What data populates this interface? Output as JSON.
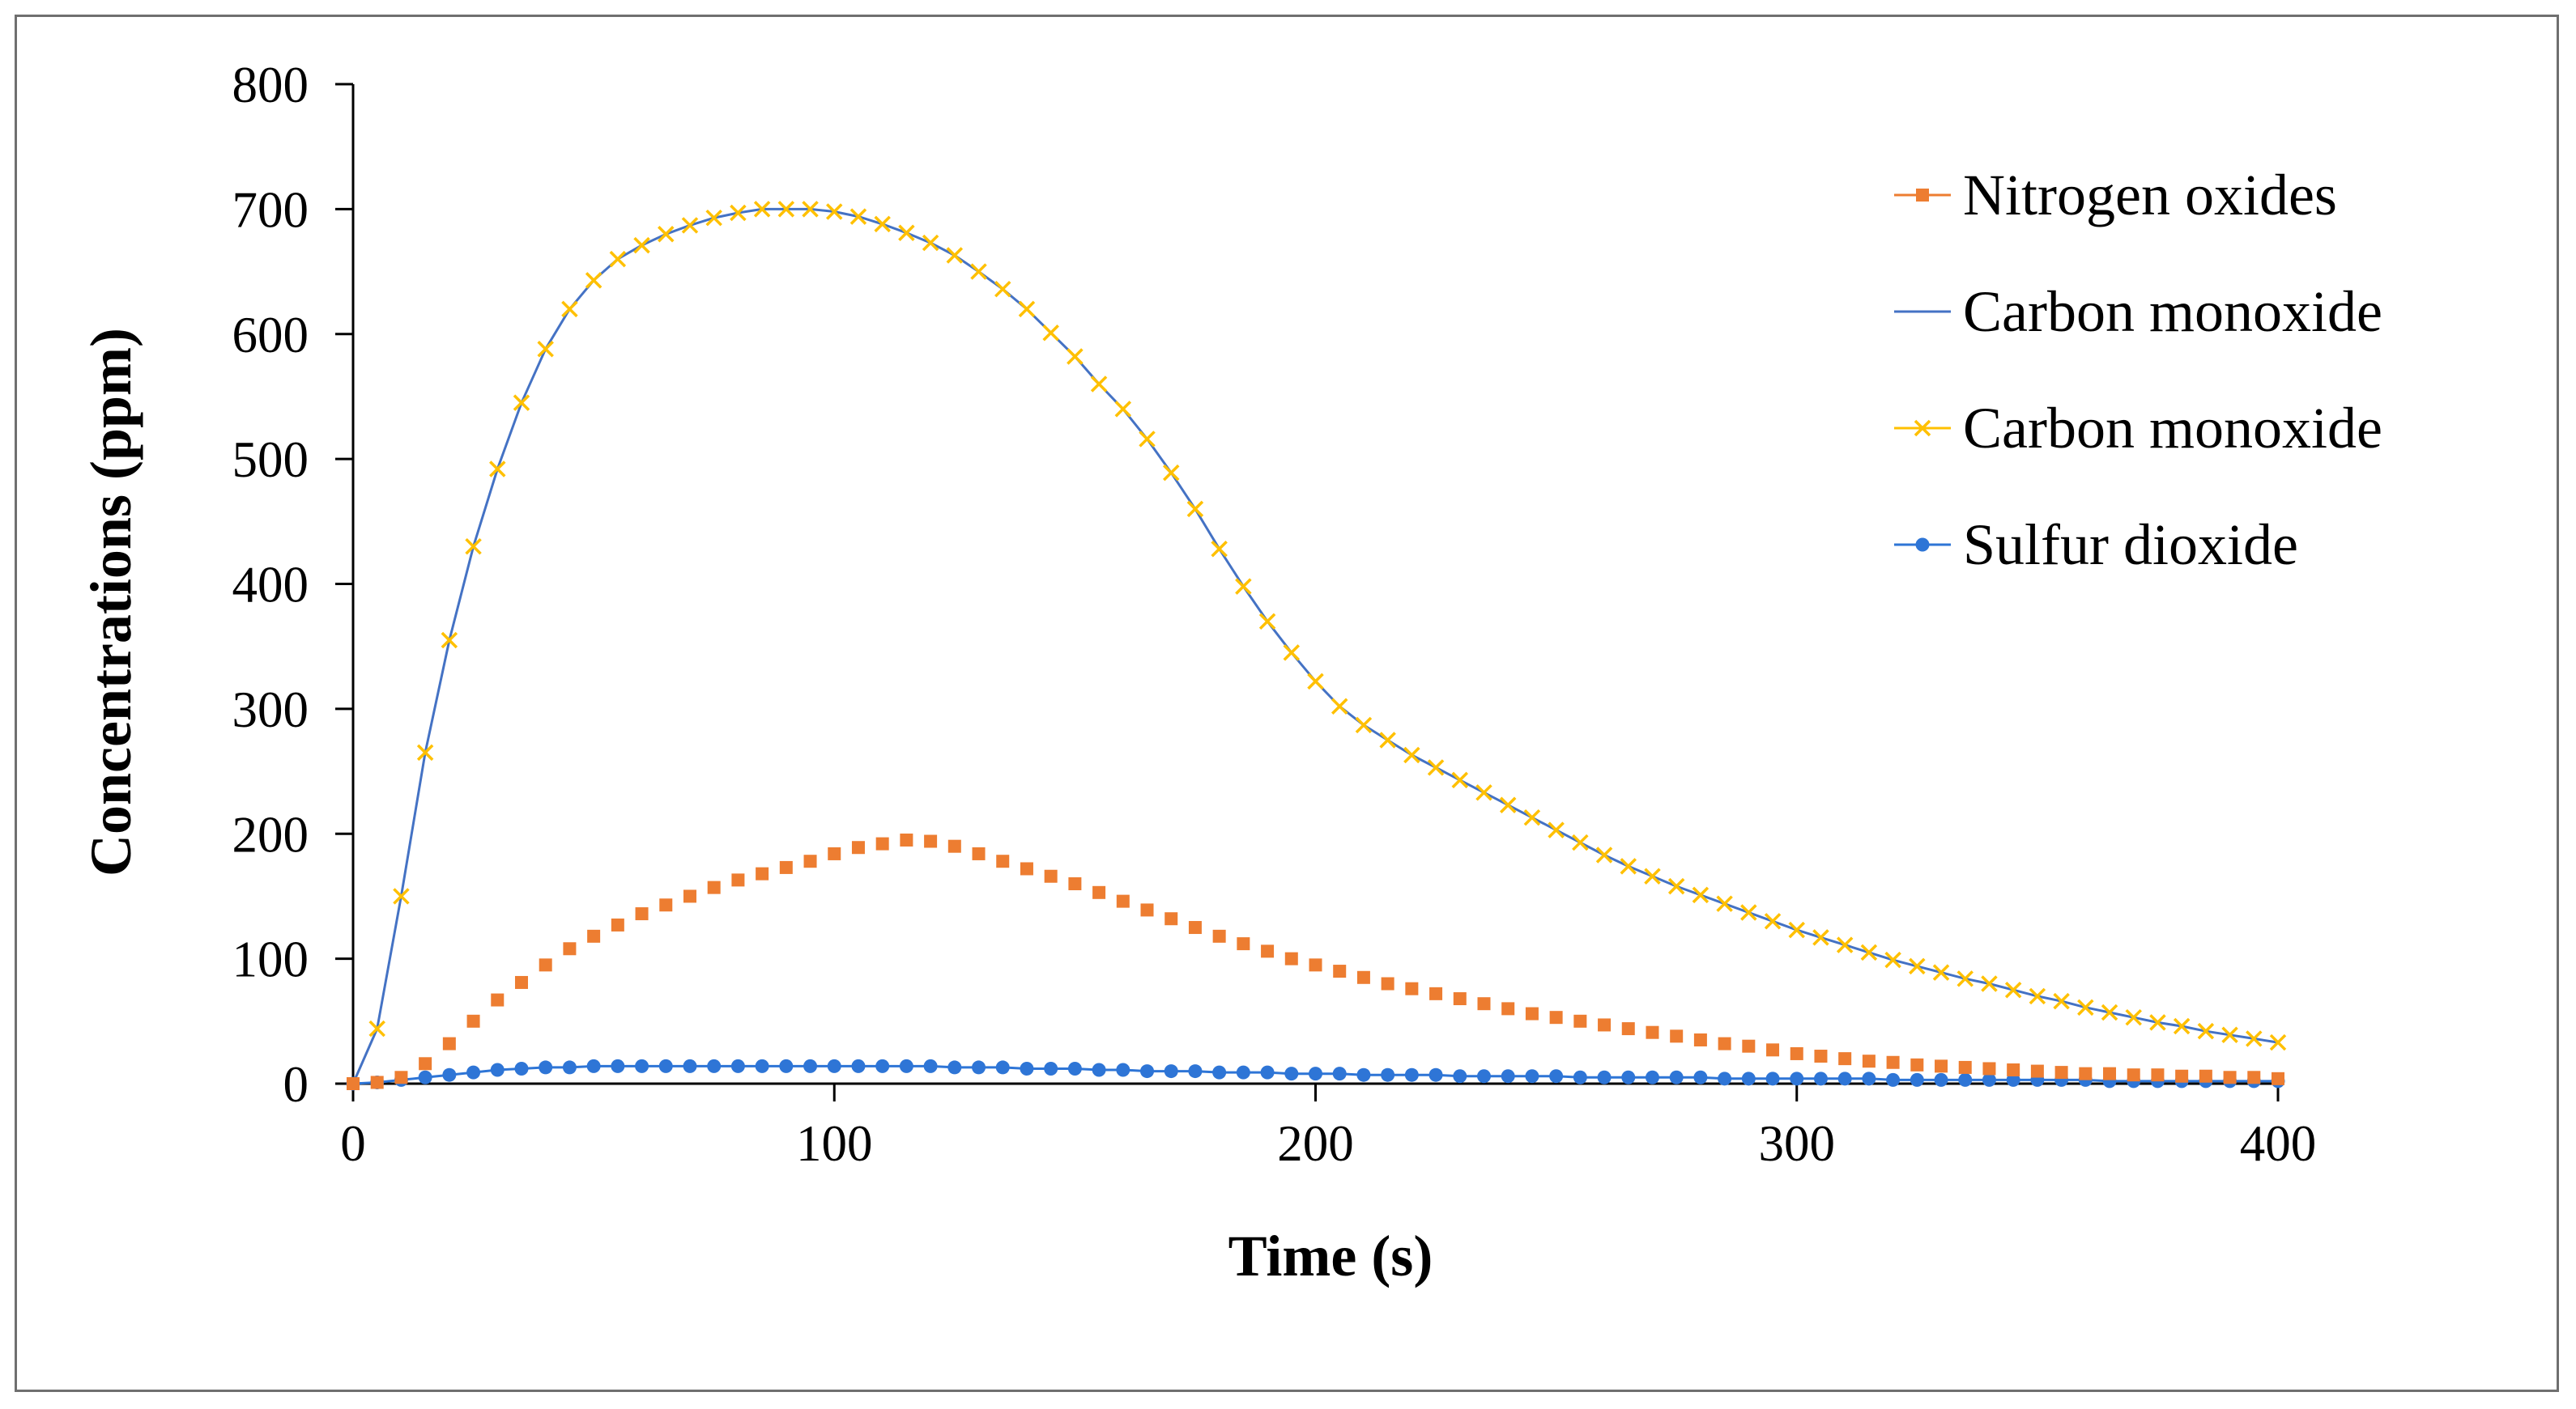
{
  "chart_data": {
    "type": "line",
    "title": "",
    "xlabel": "Time (s)",
    "ylabel": "Concentrations (ppm)",
    "xlim": [
      0,
      400
    ],
    "ylim": [
      0,
      800
    ],
    "xticks": [
      0,
      100,
      200,
      300,
      400
    ],
    "yticks": [
      0,
      100,
      200,
      300,
      400,
      500,
      600,
      700,
      800
    ],
    "grid": false,
    "legend_position": "top-right",
    "series": [
      {
        "name": "Nitrogen oxides",
        "color": "#ED7D31",
        "marker": "square",
        "line": false,
        "x": [
          0,
          5,
          10,
          15,
          20,
          25,
          30,
          35,
          40,
          45,
          50,
          55,
          60,
          65,
          70,
          75,
          80,
          85,
          90,
          95,
          100,
          105,
          110,
          115,
          120,
          125,
          130,
          135,
          140,
          145,
          150,
          155,
          160,
          165,
          170,
          175,
          180,
          185,
          190,
          195,
          200,
          205,
          210,
          215,
          220,
          225,
          230,
          235,
          240,
          245,
          250,
          255,
          260,
          265,
          270,
          275,
          280,
          285,
          290,
          295,
          300,
          305,
          310,
          315,
          320,
          325,
          330,
          335,
          340,
          345,
          350,
          355,
          360,
          365,
          370,
          375,
          380,
          385,
          390,
          395,
          400
        ],
        "y": [
          0,
          1,
          5,
          16,
          32,
          50,
          67,
          81,
          95,
          108,
          118,
          127,
          136,
          143,
          150,
          157,
          163,
          168,
          173,
          178,
          184,
          189,
          192,
          195,
          194,
          190,
          184,
          178,
          172,
          166,
          160,
          153,
          146,
          139,
          132,
          125,
          118,
          112,
          106,
          100,
          95,
          90,
          85,
          80,
          76,
          72,
          68,
          64,
          60,
          56,
          53,
          50,
          47,
          44,
          41,
          38,
          35,
          32,
          30,
          27,
          24,
          22,
          20,
          18,
          17,
          15,
          14,
          13,
          12,
          11,
          10,
          9,
          8,
          8,
          7,
          7,
          6,
          6,
          5,
          5,
          4
        ]
      },
      {
        "name": "Carbon monoxide",
        "color": "#4472C4",
        "marker": "none",
        "line": true,
        "x": [
          0,
          5,
          10,
          15,
          20,
          25,
          30,
          35,
          40,
          45,
          50,
          55,
          60,
          65,
          70,
          75,
          80,
          85,
          90,
          95,
          100,
          105,
          110,
          115,
          120,
          125,
          130,
          135,
          140,
          145,
          150,
          155,
          160,
          165,
          170,
          175,
          180,
          185,
          190,
          195,
          200,
          205,
          210,
          215,
          220,
          225,
          230,
          235,
          240,
          245,
          250,
          255,
          260,
          265,
          270,
          275,
          280,
          285,
          290,
          295,
          300,
          305,
          310,
          315,
          320,
          325,
          330,
          335,
          340,
          345,
          350,
          355,
          360,
          365,
          370,
          375,
          380,
          385,
          390,
          395,
          400
        ],
        "y": [
          0,
          44,
          150,
          265,
          355,
          430,
          492,
          545,
          588,
          620,
          643,
          660,
          671,
          680,
          687,
          693,
          697,
          700,
          700,
          700,
          698,
          694,
          688,
          681,
          673,
          663,
          650,
          636,
          620,
          601,
          582,
          560,
          540,
          516,
          489,
          460,
          428,
          398,
          370,
          345,
          322,
          302,
          287,
          275,
          263,
          253,
          243,
          233,
          223,
          213,
          203,
          193,
          183,
          174,
          166,
          158,
          151,
          144,
          137,
          130,
          123,
          117,
          111,
          105,
          99,
          94,
          89,
          84,
          80,
          75,
          70,
          66,
          61,
          57,
          53,
          49,
          46,
          42,
          39,
          36,
          33
        ]
      },
      {
        "name": "Carbon monoxide",
        "color": "#FFC000",
        "marker": "x",
        "line": false,
        "x": [
          5,
          10,
          15,
          20,
          25,
          30,
          35,
          40,
          45,
          50,
          55,
          60,
          65,
          70,
          75,
          80,
          85,
          90,
          95,
          100,
          105,
          110,
          115,
          120,
          125,
          130,
          135,
          140,
          145,
          150,
          155,
          160,
          165,
          170,
          175,
          180,
          185,
          190,
          195,
          200,
          205,
          210,
          215,
          220,
          225,
          230,
          235,
          240,
          245,
          250,
          255,
          260,
          265,
          270,
          275,
          280,
          285,
          290,
          295,
          300,
          305,
          310,
          315,
          320,
          325,
          330,
          335,
          340,
          345,
          350,
          355,
          360,
          365,
          370,
          375,
          380,
          385,
          390,
          395,
          400
        ],
        "y": [
          44,
          150,
          265,
          355,
          430,
          492,
          545,
          588,
          620,
          643,
          660,
          671,
          680,
          687,
          693,
          697,
          700,
          700,
          700,
          698,
          694,
          688,
          681,
          673,
          663,
          650,
          636,
          620,
          601,
          582,
          560,
          540,
          516,
          489,
          460,
          428,
          398,
          370,
          345,
          322,
          302,
          287,
          275,
          263,
          253,
          243,
          233,
          223,
          213,
          203,
          193,
          183,
          174,
          166,
          158,
          151,
          144,
          137,
          130,
          123,
          117,
          111,
          105,
          99,
          94,
          89,
          84,
          80,
          75,
          70,
          66,
          61,
          57,
          53,
          49,
          46,
          42,
          39,
          36,
          33
        ]
      },
      {
        "name": "Sulfur dioxide",
        "color": "#2E75D6",
        "marker": "circle",
        "line": true,
        "x": [
          0,
          5,
          10,
          15,
          20,
          25,
          30,
          35,
          40,
          45,
          50,
          55,
          60,
          65,
          70,
          75,
          80,
          85,
          90,
          95,
          100,
          105,
          110,
          115,
          120,
          125,
          130,
          135,
          140,
          145,
          150,
          155,
          160,
          165,
          170,
          175,
          180,
          185,
          190,
          195,
          200,
          205,
          210,
          215,
          220,
          225,
          230,
          235,
          240,
          245,
          250,
          255,
          260,
          265,
          270,
          275,
          280,
          285,
          290,
          295,
          300,
          305,
          310,
          315,
          320,
          325,
          330,
          335,
          340,
          345,
          350,
          355,
          360,
          365,
          370,
          375,
          380,
          385,
          390,
          395,
          400
        ],
        "y": [
          0,
          1,
          3,
          5,
          7,
          9,
          11,
          12,
          13,
          13,
          14,
          14,
          14,
          14,
          14,
          14,
          14,
          14,
          14,
          14,
          14,
          14,
          14,
          14,
          14,
          13,
          13,
          13,
          12,
          12,
          12,
          11,
          11,
          10,
          10,
          10,
          9,
          9,
          9,
          8,
          8,
          8,
          7,
          7,
          7,
          7,
          6,
          6,
          6,
          6,
          6,
          5,
          5,
          5,
          5,
          5,
          5,
          4,
          4,
          4,
          4,
          4,
          4,
          4,
          3,
          3,
          3,
          3,
          3,
          3,
          3,
          3,
          3,
          2,
          2,
          2,
          2,
          2,
          2,
          2,
          2
        ]
      }
    ]
  }
}
